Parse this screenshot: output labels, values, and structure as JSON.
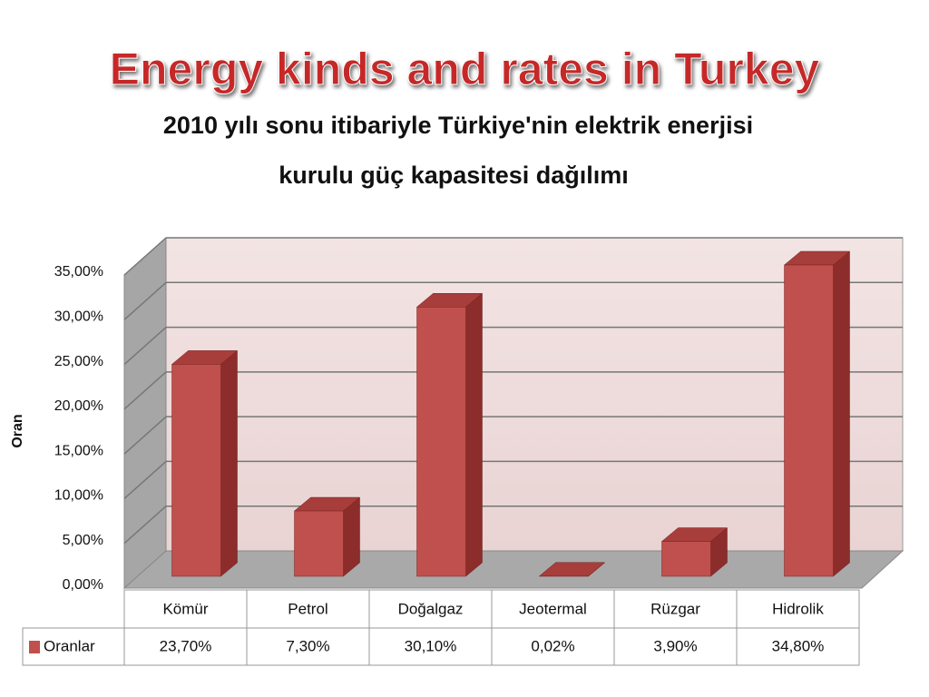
{
  "chart_data": {
    "type": "bar3d",
    "title": "Energy kinds and rates in Turkey",
    "subtitle": [
      "2010 yılı sonu itibariyle Türkiye'nin elektrik enerjisi",
      "kurulu güç kapasitesi dağılımı"
    ],
    "y_label": "Oran",
    "categories": [
      "Kömür",
      "Petrol",
      "Doğalgaz",
      "Jeotermal",
      "Rüzgar",
      "Hidrolik"
    ],
    "series": [
      {
        "name": "Oranlar",
        "color": "#c0504d",
        "values": [
          23.7,
          7.3,
          30.1,
          0.02,
          3.9,
          34.8
        ],
        "value_labels": [
          "23,70%",
          "7,30%",
          "30,10%",
          "0,02%",
          "3,90%",
          "34,80%"
        ]
      }
    ],
    "ylim": [
      0,
      35
    ],
    "yticks": [
      {
        "value": 0,
        "label": "0,00%"
      },
      {
        "value": 5,
        "label": "5,00%"
      },
      {
        "value": 10,
        "label": "10,00%"
      },
      {
        "value": 15,
        "label": "15,00%"
      },
      {
        "value": 20,
        "label": "20,00%"
      },
      {
        "value": 25,
        "label": "25,00%"
      },
      {
        "value": 30,
        "label": "30,00%"
      },
      {
        "value": 35,
        "label": "35,00%"
      }
    ],
    "grid": true
  }
}
